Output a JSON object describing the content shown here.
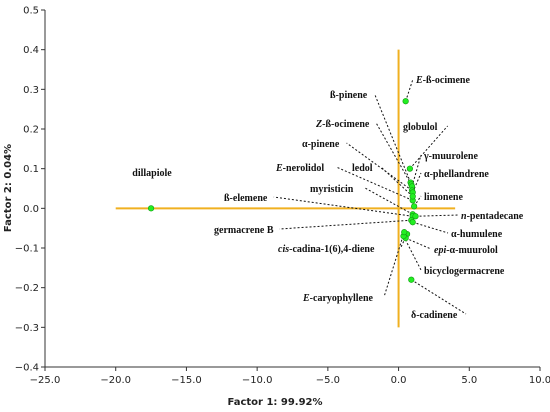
{
  "chart_data": {
    "type": "scatter",
    "xlabel": "Factor 1: 99.92%",
    "ylabel": "Factor 2: 0.04%",
    "xlim": [
      -25,
      10
    ],
    "ylim": [
      -0.4,
      0.5
    ],
    "x_ticks": [
      "−25.0",
      "−20.0",
      "−15.0",
      "−10.0",
      "−5.0",
      "0.0",
      "5.0",
      "10.0"
    ],
    "y_ticks": [
      "−0.4",
      "−0.3",
      "−0.2",
      "−0.1",
      "0.0",
      "0.1",
      "0.2",
      "0.3",
      "0.4",
      "0.5"
    ],
    "grid": false,
    "reference_lines": {
      "x": 0,
      "y": 0,
      "x_span": [
        -20,
        4
      ],
      "y_span": [
        -0.3,
        0.4
      ]
    },
    "colors": {
      "point": "#22ee22",
      "point_edge": "#119911",
      "ref_line": "#f0b020",
      "leader": "#111111"
    },
    "points": [
      {
        "label": "dillapiole",
        "x": -17.5,
        "y": 0.0
      },
      {
        "label": "E-ß-ocimene",
        "x": 0.5,
        "y": 0.27
      },
      {
        "label": "globulol",
        "x": 0.8,
        "y": 0.1
      },
      {
        "label": "ß-pinene",
        "x": 0.85,
        "y": 0.065
      },
      {
        "label": "Z-ß-ocimene",
        "x": 0.9,
        "y": 0.06
      },
      {
        "label": "γ-muurolene",
        "x": 0.95,
        "y": 0.055
      },
      {
        "label": "α-pinene",
        "x": 0.95,
        "y": 0.045
      },
      {
        "label": "α-phellandrene",
        "x": 1.0,
        "y": 0.04
      },
      {
        "label": "E-nerolidol",
        "x": 1.0,
        "y": 0.02
      },
      {
        "label": "ledol",
        "x": 1.0,
        "y": 0.03
      },
      {
        "label": "limonene",
        "x": 1.1,
        "y": 0.005
      },
      {
        "label": "myristicin",
        "x": 1.0,
        "y": -0.015
      },
      {
        "label": "ß-elemene",
        "x": 1.0,
        "y": -0.02
      },
      {
        "label": "n-pentadecane",
        "x": 1.2,
        "y": -0.02
      },
      {
        "label": "germacrene B",
        "x": 0.9,
        "y": -0.03
      },
      {
        "label": "α-humulene",
        "x": 1.0,
        "y": -0.035
      },
      {
        "label": "cis-cadina-1(6),4-diene",
        "x": 0.6,
        "y": -0.065
      },
      {
        "label": "epi-α-muurolol",
        "x": 0.5,
        "y": -0.075
      },
      {
        "label": "bicyclogermacrene",
        "x": 0.35,
        "y": -0.07
      },
      {
        "label": "E-caryophyllene",
        "x": 0.4,
        "y": -0.06
      },
      {
        "label": "δ-cadinene",
        "x": 0.9,
        "y": -0.18
      }
    ]
  }
}
